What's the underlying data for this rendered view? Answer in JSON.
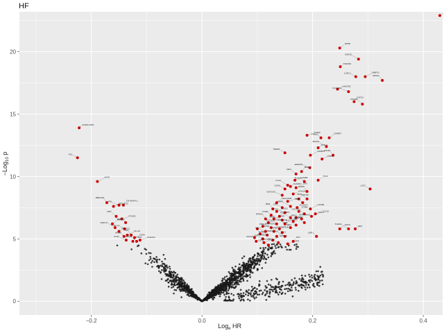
{
  "chart_data": {
    "type": "scatter",
    "title": "HF",
    "xlabel": "Log",
    "xlabel_sub": "e",
    "xlabel_after": " HR",
    "ylabel": "−Log",
    "ylabel_sub": "10",
    "ylabel_after": " p",
    "xlim": [
      -0.33,
      0.435
    ],
    "ylim": [
      -1.1,
      23.2
    ],
    "xticks": [
      -0.2,
      0.0,
      0.2,
      0.4
    ],
    "xtick_labels": [
      "−0.2",
      "0.0",
      "0.2",
      "0.4"
    ],
    "yticks": [
      0,
      5,
      10,
      15,
      20
    ],
    "ytick_labels": [
      "0",
      "5",
      "10",
      "15",
      "20"
    ],
    "grid": true,
    "background_color": "#ebebeb",
    "grid_color": "#ffffff",
    "point_color_background": "#1a1a1a",
    "point_color_significant": "#cc0000",
    "significant_points": [
      {
        "x": -0.222,
        "y": 13.9,
        "label": "CORIN.1050"
      },
      {
        "x": -0.225,
        "y": 11.5,
        "label": "NCL"
      },
      {
        "x": -0.189,
        "y": 9.6,
        "label": "ACP6"
      },
      {
        "x": -0.172,
        "y": 7.9,
        "label": "RBM.DM"
      },
      {
        "x": -0.16,
        "y": 7.6,
        "label": "SBDAP.13"
      },
      {
        "x": -0.15,
        "y": 7.7,
        "label": "PRL"
      },
      {
        "x": -0.142,
        "y": 7.7,
        "label": "CNTNAP4.2"
      },
      {
        "x": -0.155,
        "y": 6.8,
        "label": "DPP"
      },
      {
        "x": -0.145,
        "y": 6.6,
        "label": "PCSK9"
      },
      {
        "x": -0.138,
        "y": 6.3,
        "label": "TIMP7"
      },
      {
        "x": -0.162,
        "y": 6.2,
        "label": "BCCHA"
      },
      {
        "x": -0.157,
        "y": 5.9,
        "label": "LRRC17"
      },
      {
        "x": -0.15,
        "y": 5.6,
        "label": "PLXDC2"
      },
      {
        "x": -0.14,
        "y": 5.8,
        "label": "RL.G1"
      },
      {
        "x": -0.135,
        "y": 5.3,
        "label": "RL.A0"
      },
      {
        "x": -0.128,
        "y": 5.3,
        "label": "LY9"
      },
      {
        "x": -0.122,
        "y": 5.1,
        "label": "CD40"
      },
      {
        "x": -0.137,
        "y": 4.9,
        "label": "FTNT"
      },
      {
        "x": -0.125,
        "y": 4.8,
        "label": "LTBP2"
      },
      {
        "x": -0.118,
        "y": 4.8,
        "label": "CLCN3"
      },
      {
        "x": -0.112,
        "y": 4.9,
        "label": "CLEC4G"
      },
      {
        "x": -0.141,
        "y": 5.2,
        "label": "APOM"
      },
      {
        "x": 0.249,
        "y": 20.3,
        "label": "NPPB"
      },
      {
        "x": 0.283,
        "y": 19.4,
        "label": "GDF15"
      },
      {
        "x": 0.25,
        "y": 18.8,
        "label": "TNFRSF"
      },
      {
        "x": 0.278,
        "y": 18.0,
        "label": "IL1RL1"
      },
      {
        "x": 0.295,
        "y": 18.0,
        "label": "MMP12"
      },
      {
        "x": 0.326,
        "y": 17.7,
        "label": "GFRAL"
      },
      {
        "x": 0.245,
        "y": 17.0,
        "label": "HAVCR2"
      },
      {
        "x": 0.265,
        "y": 16.8,
        "label": "COL18A1"
      },
      {
        "x": 0.275,
        "y": 16.0,
        "label": "FGF23"
      },
      {
        "x": 0.29,
        "y": 15.8,
        "label": "PRSS8"
      },
      {
        "x": 0.19,
        "y": 13.3,
        "label": "TNFSF"
      },
      {
        "x": 0.215,
        "y": 13.1,
        "label": "THBS2"
      },
      {
        "x": 0.23,
        "y": 13.1,
        "label": "IGFBP7"
      },
      {
        "x": 0.225,
        "y": 12.4,
        "label": "SPON1"
      },
      {
        "x": 0.21,
        "y": 12.3,
        "label": "FSTL3"
      },
      {
        "x": 0.15,
        "y": 11.9,
        "label": "TREM1"
      },
      {
        "x": 0.196,
        "y": 11.7,
        "label": "IGFBP2"
      },
      {
        "x": 0.237,
        "y": 11.7,
        "label": "CD163"
      },
      {
        "x": 0.217,
        "y": 11.4,
        "label": "LTBP3"
      },
      {
        "x": 0.195,
        "y": 10.7,
        "label": "EFEMP1"
      },
      {
        "x": 0.18,
        "y": 10.4,
        "label": "MMP7"
      },
      {
        "x": 0.17,
        "y": 10.2,
        "label": "REN"
      },
      {
        "x": 0.168,
        "y": 9.7,
        "label": "AMBP"
      },
      {
        "x": 0.185,
        "y": 9.6,
        "label": "PLAUR"
      },
      {
        "x": 0.21,
        "y": 9.7,
        "label": "TFF3"
      },
      {
        "x": 0.155,
        "y": 9.3,
        "label": "CA14"
      },
      {
        "x": 0.16,
        "y": 9.2,
        "label": "SLAMF7"
      },
      {
        "x": 0.15,
        "y": 9.0,
        "label": "CDH3"
      },
      {
        "x": 0.17,
        "y": 9.1,
        "label": "CFD"
      },
      {
        "x": 0.19,
        "y": 8.8,
        "label": "IGSF8"
      },
      {
        "x": 0.165,
        "y": 8.6,
        "label": "LGALS9"
      },
      {
        "x": 0.145,
        "y": 8.5,
        "label": "NOTCH3"
      },
      {
        "x": 0.175,
        "y": 8.2,
        "label": "CNTN5"
      },
      {
        "x": 0.19,
        "y": 8.2,
        "label": "SPP1"
      },
      {
        "x": 0.155,
        "y": 8.0,
        "label": "ADM"
      },
      {
        "x": 0.182,
        "y": 7.9,
        "label": "PGF"
      },
      {
        "x": 0.135,
        "y": 7.9,
        "label": "CEACAM8"
      },
      {
        "x": 0.16,
        "y": 7.6,
        "label": "TIMP1"
      },
      {
        "x": 0.172,
        "y": 7.5,
        "label": "PLA2G7"
      },
      {
        "x": 0.145,
        "y": 7.5,
        "label": "CD4"
      },
      {
        "x": 0.196,
        "y": 7.4,
        "label": "LILRB1"
      },
      {
        "x": 0.128,
        "y": 7.4,
        "label": "B2M"
      },
      {
        "x": 0.135,
        "y": 7.2,
        "label": "VSIG2"
      },
      {
        "x": 0.15,
        "y": 7.1,
        "label": "PTX3"
      },
      {
        "x": 0.175,
        "y": 7.2,
        "label": "ICAM2"
      },
      {
        "x": 0.185,
        "y": 7.0,
        "label": "CXCL16"
      },
      {
        "x": 0.205,
        "y": 7.0,
        "label": "CCL15"
      },
      {
        "x": 0.125,
        "y": 6.9,
        "label": "ITGB2"
      },
      {
        "x": 0.14,
        "y": 6.8,
        "label": "NRP1"
      },
      {
        "x": 0.16,
        "y": 6.7,
        "label": "PI3"
      },
      {
        "x": 0.17,
        "y": 6.7,
        "label": "SERPINA12"
      },
      {
        "x": 0.18,
        "y": 6.6,
        "label": "AREG"
      },
      {
        "x": 0.198,
        "y": 6.8,
        "label": "CCL3"
      },
      {
        "x": 0.115,
        "y": 6.6,
        "label": "EPHA2"
      },
      {
        "x": 0.13,
        "y": 6.6,
        "label": "CDH6"
      },
      {
        "x": 0.145,
        "y": 6.5,
        "label": "MSR1"
      },
      {
        "x": 0.165,
        "y": 6.4,
        "label": "IL18BP"
      },
      {
        "x": 0.185,
        "y": 6.3,
        "label": "ACE2"
      },
      {
        "x": 0.12,
        "y": 6.3,
        "label": "TNFRSF10A"
      },
      {
        "x": 0.135,
        "y": 6.2,
        "label": "FLT3LG"
      },
      {
        "x": 0.15,
        "y": 6.2,
        "label": "CD300C"
      },
      {
        "x": 0.17,
        "y": 6.1,
        "label": "IL6"
      },
      {
        "x": 0.11,
        "y": 6.0,
        "label": "TNFRSF1A"
      },
      {
        "x": 0.125,
        "y": 5.9,
        "label": "PRELP"
      },
      {
        "x": 0.14,
        "y": 5.8,
        "label": "NEFL"
      },
      {
        "x": 0.16,
        "y": 5.9,
        "label": "KIM1"
      },
      {
        "x": 0.1,
        "y": 5.8,
        "label": "CHI3L1"
      },
      {
        "x": 0.115,
        "y": 5.6,
        "label": "MB"
      },
      {
        "x": 0.13,
        "y": 5.6,
        "label": "TNFRSF11B"
      },
      {
        "x": 0.145,
        "y": 5.5,
        "label": "PAPPA"
      },
      {
        "x": 0.105,
        "y": 5.4,
        "label": "MMP9"
      },
      {
        "x": 0.118,
        "y": 5.3,
        "label": "IL1RN"
      },
      {
        "x": 0.135,
        "y": 5.2,
        "label": "ELN"
      },
      {
        "x": 0.15,
        "y": 5.2,
        "label": "FAS"
      },
      {
        "x": 0.095,
        "y": 5.1,
        "label": "RARRES2"
      },
      {
        "x": 0.11,
        "y": 5.0,
        "label": "LEP"
      },
      {
        "x": 0.128,
        "y": 4.9,
        "label": "SPINK1"
      },
      {
        "x": 0.098,
        "y": 4.8,
        "label": "CDCP1"
      },
      {
        "x": 0.112,
        "y": 4.7,
        "label": "EGFR"
      },
      {
        "x": 0.138,
        "y": 4.7,
        "label": "NT.proBNP"
      },
      {
        "x": 0.165,
        "y": 4.8,
        "label": "PTN"
      },
      {
        "x": 0.12,
        "y": 4.5,
        "label": "CST3"
      },
      {
        "x": 0.155,
        "y": 4.6,
        "label": "OPG"
      },
      {
        "x": 0.207,
        "y": 5.2,
        "label": "CRP.1"
      },
      {
        "x": 0.249,
        "y": 5.8,
        "label": "PLIN1"
      },
      {
        "x": 0.265,
        "y": 5.8,
        "label": "THSD4"
      },
      {
        "x": 0.277,
        "y": 5.8,
        "label": "MET"
      },
      {
        "x": 0.304,
        "y": 9.0,
        "label": "LAT2"
      },
      {
        "x": 0.43,
        "y": 22.9,
        "label": "ASPN"
      }
    ]
  }
}
